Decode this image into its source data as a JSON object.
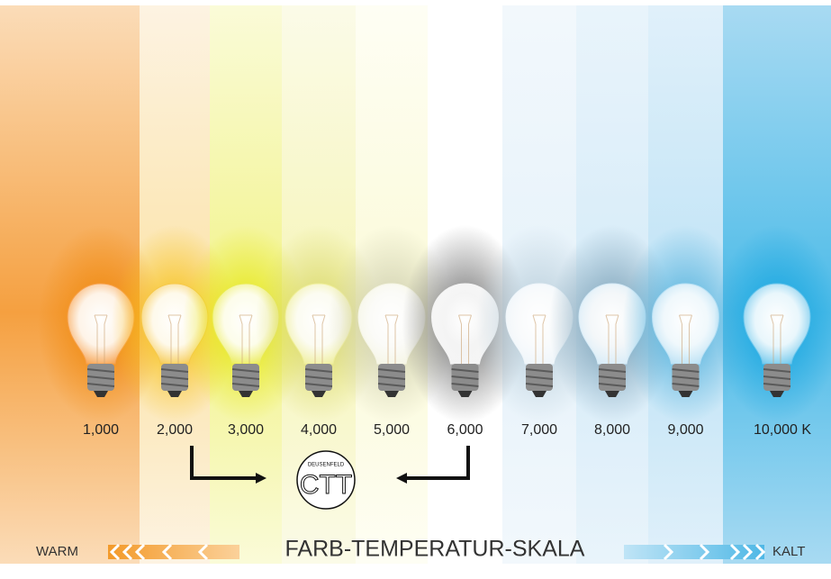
{
  "scale": {
    "labels": [
      "1,000",
      "2,000",
      "3,000",
      "4,000",
      "5,000",
      "6,000",
      "7,000",
      "8,000",
      "9,000",
      "10,000 K"
    ]
  },
  "logo": {
    "top": "DEUSENFELD",
    "main": "CTT"
  },
  "title": "FARB-TEMPERATUR-SKALA",
  "warm": "WARM",
  "cold": "KALT"
}
